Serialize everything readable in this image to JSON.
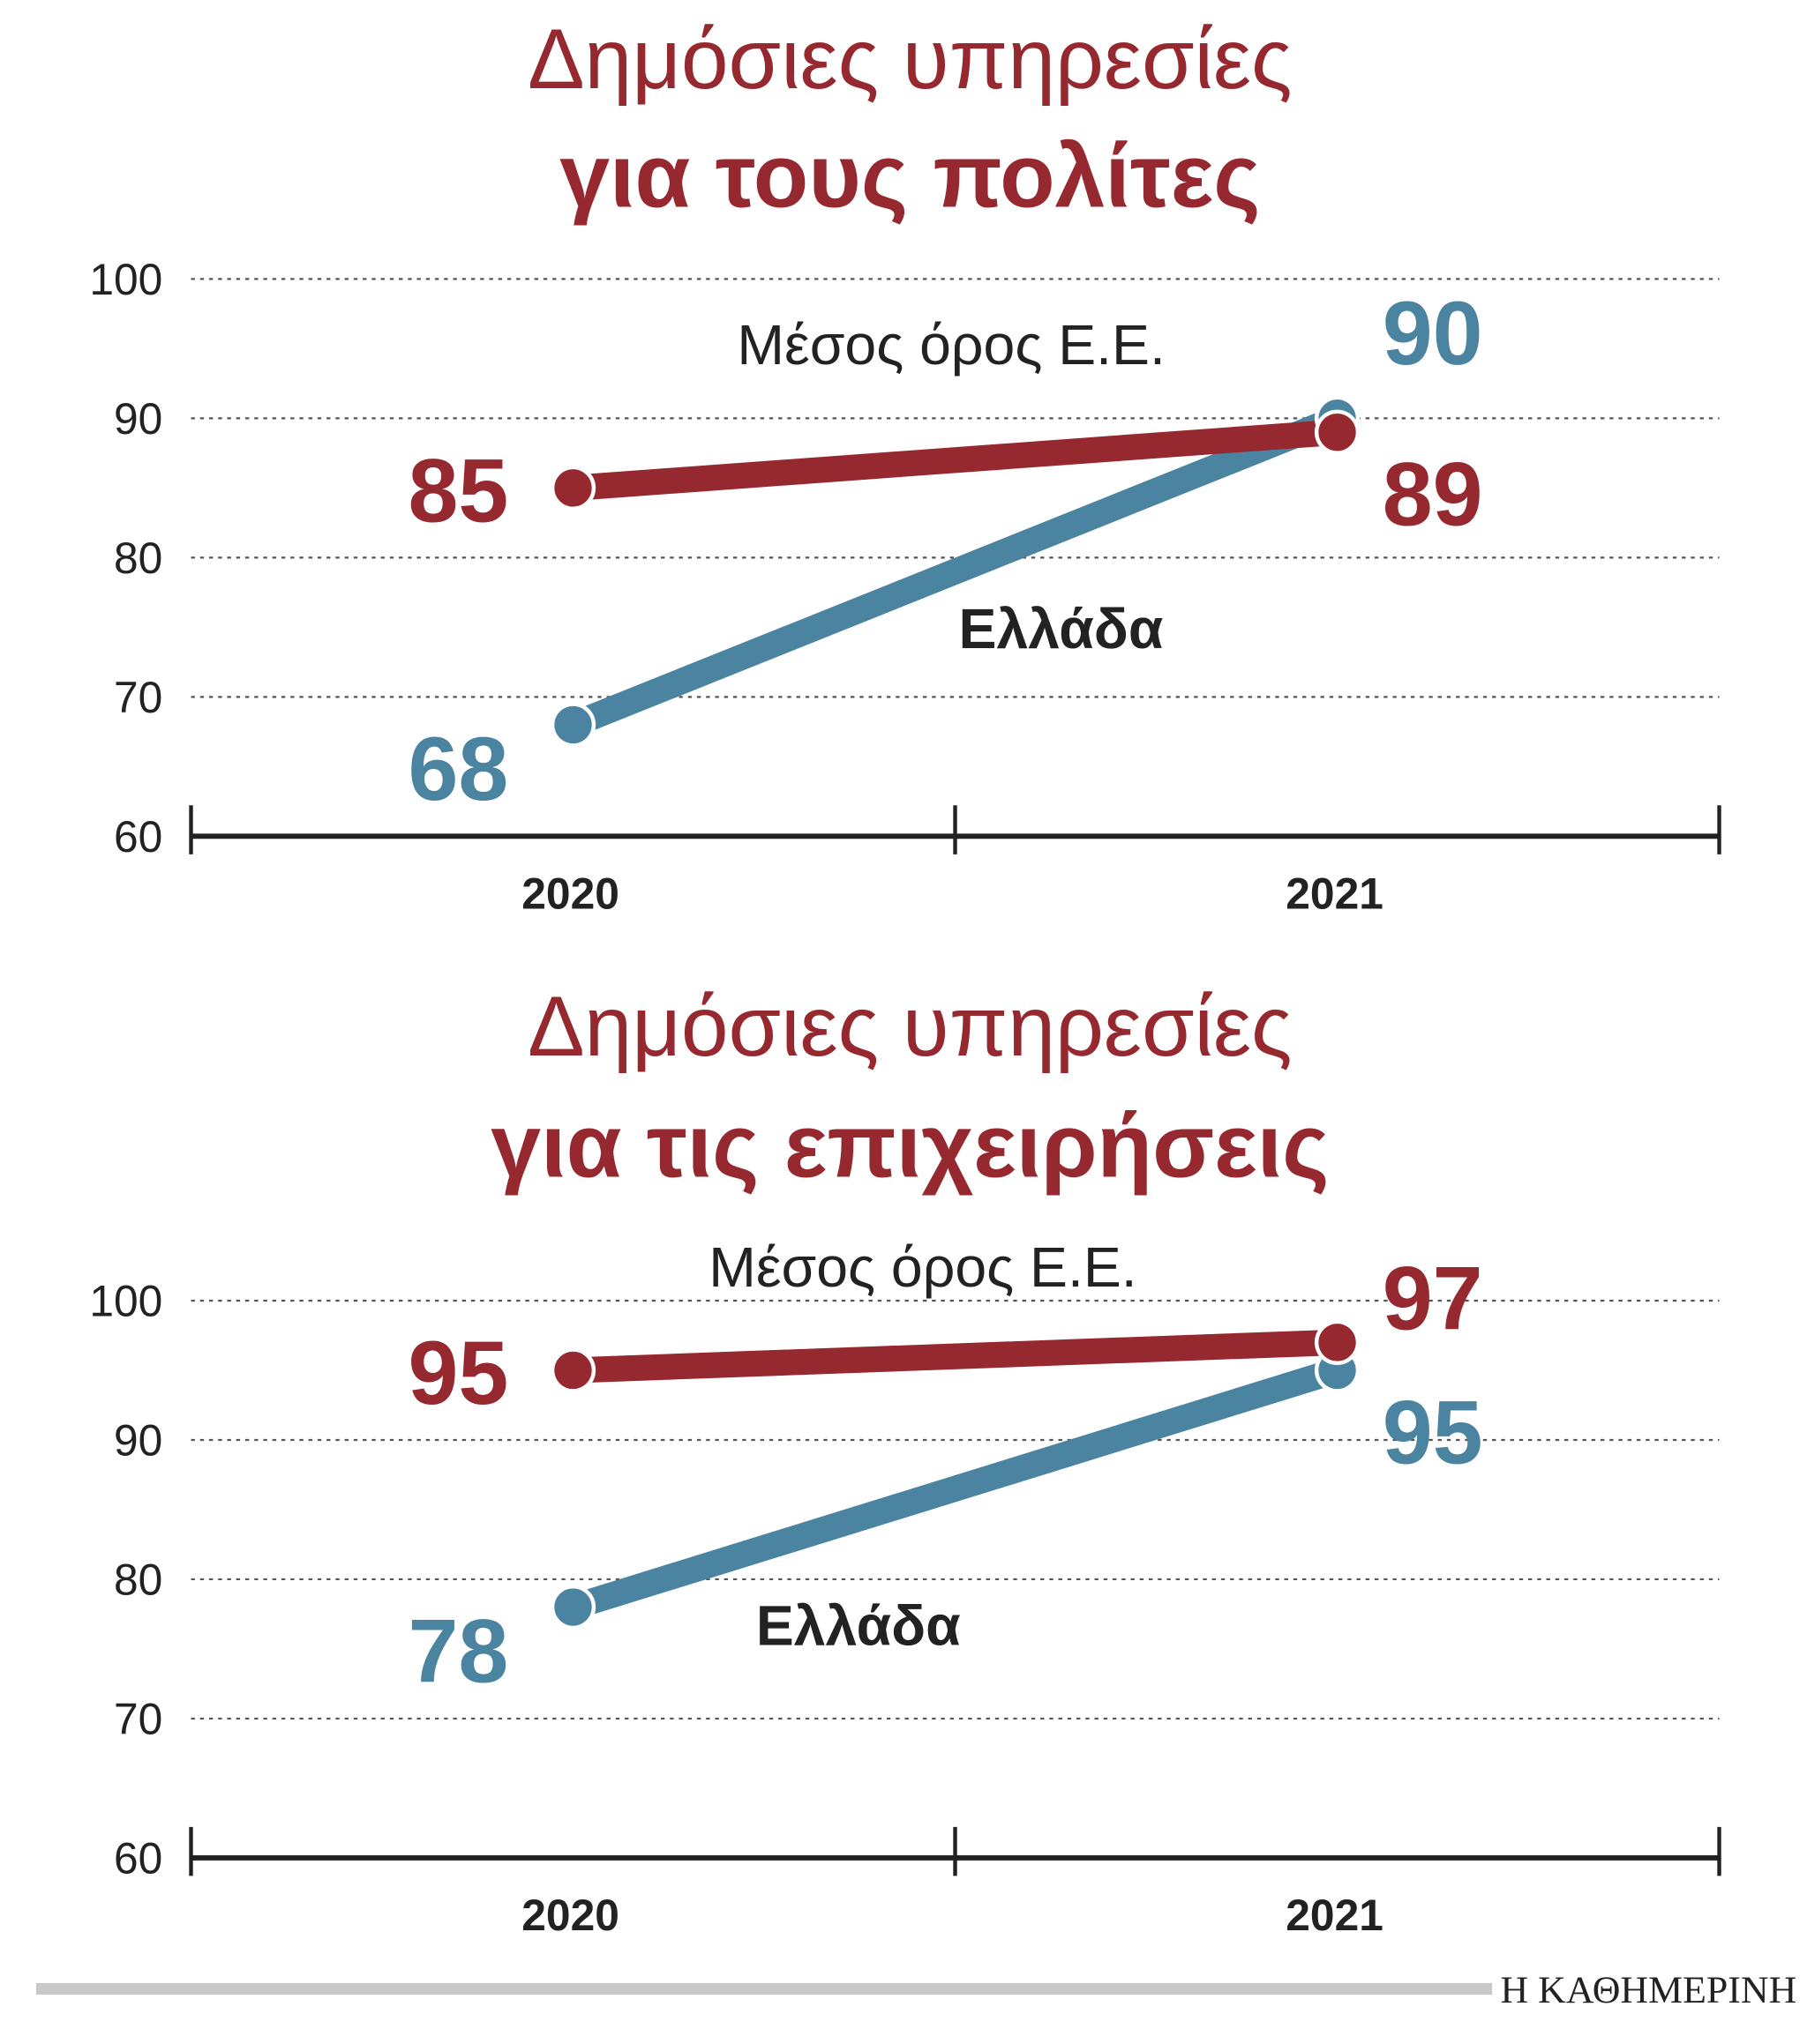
{
  "chart_data": [
    {
      "type": "line",
      "title": "Δημόσιες υπηρεσίες",
      "subtitle": "για τους πολίτες",
      "categories": [
        "2020",
        "2021"
      ],
      "series": [
        {
          "name": "Μέσος όρος Ε.Ε.",
          "color": "#96282f",
          "values": [
            85,
            89
          ]
        },
        {
          "name": "Ελλάδα",
          "color": "#4a84a0",
          "values": [
            68,
            90
          ]
        }
      ],
      "ylim": [
        60,
        100
      ],
      "yticks": [
        60,
        70,
        80,
        90,
        100
      ],
      "grid": true
    },
    {
      "type": "line",
      "title": "Δημόσιες υπηρεσίες",
      "subtitle": "για τις επιχειρήσεις",
      "categories": [
        "2020",
        "2021"
      ],
      "series": [
        {
          "name": "Μέσος όρος Ε.Ε.",
          "color": "#96282f",
          "values": [
            95,
            97
          ]
        },
        {
          "name": "Ελλάδα",
          "color": "#4a84a0",
          "values": [
            78,
            95
          ]
        }
      ],
      "ylim": [
        60,
        100
      ],
      "yticks": [
        60,
        70,
        80,
        90,
        100
      ],
      "grid": true
    }
  ],
  "credit": "Η ΚΑΘΗΜΕΡΙΝΗ"
}
